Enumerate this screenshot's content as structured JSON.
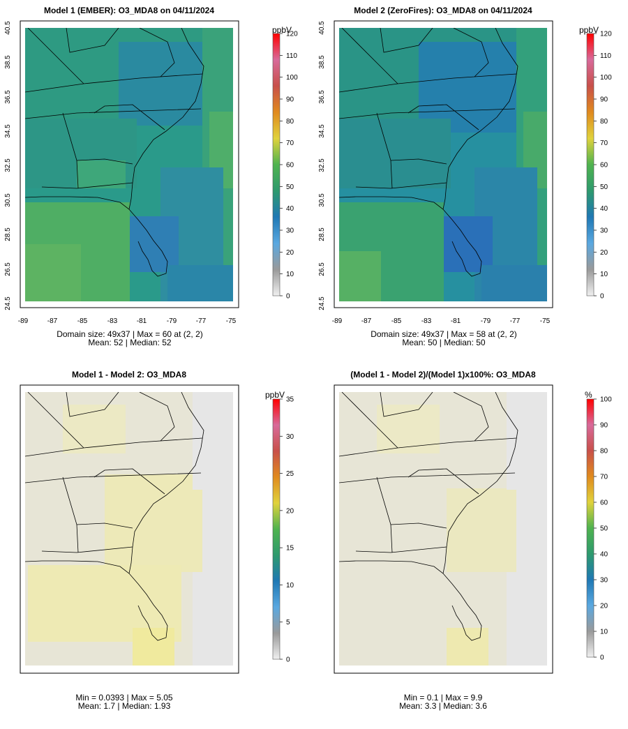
{
  "chart_data": [
    {
      "type": "heatmap",
      "title": "Model 1 (EMBER): O3_MDA8 on 04/11/2024",
      "unit": "ppbV",
      "xlim": [
        -89,
        -75
      ],
      "ylim": [
        24.5,
        40.5
      ],
      "xticks": [
        "-89",
        "-87",
        "-85",
        "-83",
        "-81",
        "-79",
        "-77",
        "-75"
      ],
      "yticks": [
        "24.5",
        "26.5",
        "28.5",
        "30.5",
        "32.5",
        "34.5",
        "36.5",
        "38.5",
        "40.5"
      ],
      "colorbar_ticks": [
        "0",
        "10",
        "20",
        "30",
        "40",
        "50",
        "60",
        "70",
        "80",
        "90",
        "100",
        "110",
        "120"
      ],
      "colorbar_range": [
        0,
        120
      ],
      "grid_size": [
        49,
        37
      ],
      "stat_line1": "Domain size: 49x37 | Max = 60 at (2, 2)",
      "stat_line2": "Mean: 52 |  Median: 52",
      "max": 60,
      "mean": 52,
      "median": 52
    },
    {
      "type": "heatmap",
      "title": "Model 2 (ZeroFires): O3_MDA8 on 04/11/2024",
      "unit": "ppbV",
      "xlim": [
        -89,
        -75
      ],
      "ylim": [
        24.5,
        40.5
      ],
      "xticks": [
        "-89",
        "-87",
        "-85",
        "-83",
        "-81",
        "-79",
        "-77",
        "-75"
      ],
      "yticks": [
        "24.5",
        "26.5",
        "28.5",
        "30.5",
        "32.5",
        "34.5",
        "36.5",
        "38.5",
        "40.5"
      ],
      "colorbar_ticks": [
        "0",
        "10",
        "20",
        "30",
        "40",
        "50",
        "60",
        "70",
        "80",
        "90",
        "100",
        "110",
        "120"
      ],
      "colorbar_range": [
        0,
        120
      ],
      "grid_size": [
        49,
        37
      ],
      "stat_line1": "Domain size: 49x37 | Max = 58 at (2, 2)",
      "stat_line2": "Mean: 50 |  Median: 50",
      "max": 58,
      "mean": 50,
      "median": 50
    },
    {
      "type": "heatmap",
      "title": "Model 1 - Model 2: O3_MDA8",
      "unit": "ppbV",
      "colorbar_ticks": [
        "0",
        "5",
        "10",
        "15",
        "20",
        "25",
        "30",
        "35"
      ],
      "colorbar_range": [
        0,
        35
      ],
      "stat_line1": "Min = 0.0393 | Max = 5.05",
      "stat_line2": "Mean: 1.7 |  Median: 1.93",
      "min": 0.0393,
      "max": 5.05,
      "mean": 1.7,
      "median": 1.93
    },
    {
      "type": "heatmap",
      "title": "(Model 1 - Model 2)/(Model 1)x100%: O3_MDA8",
      "unit": "%",
      "colorbar_ticks": [
        "0",
        "10",
        "20",
        "30",
        "40",
        "50",
        "60",
        "70",
        "80",
        "90",
        "100"
      ],
      "colorbar_range": [
        0,
        100
      ],
      "stat_line1": "Min = 0.1 | Max = 9.9",
      "stat_line2": "Mean: 3.3 |  Median: 3.6",
      "min": 0.1,
      "max": 9.9,
      "mean": 3.3,
      "median": 3.6
    }
  ],
  "colors": {
    "stops": [
      "#f0f0f0",
      "#9a9a9a",
      "#5aa8e0",
      "#1f78b4",
      "#2e9a6e",
      "#4fb34f",
      "#e0d23c",
      "#e08a1e",
      "#c8504a",
      "#d86a9a",
      "#ff0000"
    ],
    "diff_background": "#e6e6e6",
    "diff_land": "#e7e5d6",
    "diff_warm": "#ede9b0"
  }
}
